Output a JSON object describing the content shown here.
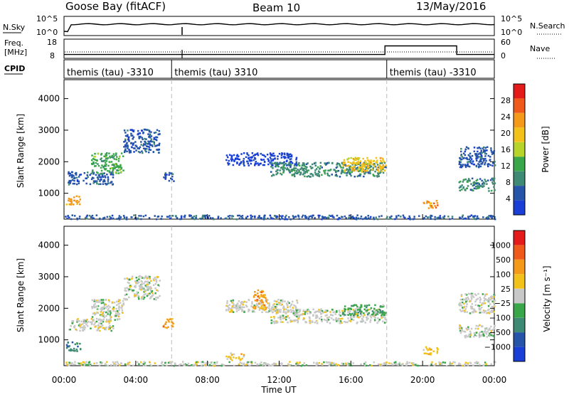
{
  "header": {
    "station": "Goose Bay (fitACF)",
    "beam": "Beam 10",
    "date": "13/May/2016"
  },
  "colors": {
    "power_scale": [
      "#1a3fd6",
      "#2554a8",
      "#3f8a74",
      "#3aa64a",
      "#b6d42a",
      "#f2c21b",
      "#f39a1a",
      "#ef5a1a",
      "#e51a1a"
    ],
    "velocity_scale": [
      "#1a3fd6",
      "#2554a8",
      "#3f8a74",
      "#3aa64a",
      "#c8c8c8",
      "#f2c21b",
      "#f39a1a",
      "#ef5a1a",
      "#e51a1a"
    ],
    "ground_scatter": "#c8c8c8"
  },
  "chart_data": [
    {
      "type": "line",
      "panel": "noise",
      "left_label": "N.Sky",
      "right_label": "N.Search",
      "left_ticks": [
        "10^5",
        "10^0"
      ],
      "right_ticks": [
        "10^5",
        "10^0"
      ]
    },
    {
      "type": "line",
      "panel": "frequency",
      "left_label_top": "Freq.",
      "left_label_bottom": "[MHz]",
      "right_label": "Nave",
      "left_ticks": [
        18,
        8
      ],
      "right_ticks": [
        60,
        0
      ],
      "freq_step": {
        "x": [
          0.0,
          17.9,
          17.9,
          21.9,
          21.9,
          24.0
        ],
        "y": [
          10,
          10,
          14.5,
          14.5,
          10,
          10
        ]
      }
    },
    {
      "type": "table",
      "panel": "cpid",
      "label": "CPID",
      "segments": [
        {
          "start": 0.0,
          "label": "themis (tau) -3310"
        },
        {
          "start": 6.0,
          "label": "themis (tau) 3310"
        },
        {
          "start": 18.0,
          "label": "themis (tau) -3310"
        }
      ]
    },
    {
      "type": "heatmap",
      "panel": "power",
      "ylabel": "Slant Range [km]",
      "yticks": [
        1000,
        2000,
        3000,
        4000
      ],
      "ylim": [
        180,
        4600
      ],
      "xlim": [
        0,
        24
      ],
      "colorbar_label": "Power [dB]",
      "colorbar_ticks": [
        4,
        8,
        12,
        16,
        20,
        24,
        28
      ],
      "regions": [
        {
          "x": [
            0.1,
            0.9
          ],
          "y": [
            650,
            950
          ],
          "level": 6
        },
        {
          "x": [
            0.2,
            2.7
          ],
          "y": [
            1300,
            1700
          ],
          "level": 1
        },
        {
          "x": [
            1.5,
            3.3
          ],
          "y": [
            1650,
            2300
          ],
          "level": 3
        },
        {
          "x": [
            3.3,
            5.3
          ],
          "y": [
            2300,
            3050
          ],
          "level": 1
        },
        {
          "x": [
            5.5,
            6.1
          ],
          "y": [
            1400,
            1700
          ],
          "level": 1
        },
        {
          "x": [
            9.0,
            13.0
          ],
          "y": [
            1900,
            2300
          ],
          "level": 0
        },
        {
          "x": [
            11.5,
            17.9
          ],
          "y": [
            1550,
            2000
          ],
          "level": 2
        },
        {
          "x": [
            15.5,
            17.9
          ],
          "y": [
            1700,
            2150
          ],
          "level": 5
        },
        {
          "x": [
            20.0,
            20.8
          ],
          "y": [
            550,
            800
          ],
          "level": 6
        },
        {
          "x": [
            22.0,
            24.0
          ],
          "y": [
            1100,
            1500
          ],
          "level": 2
        },
        {
          "x": [
            22.0,
            24.0
          ],
          "y": [
            1850,
            2500
          ],
          "level": 1
        },
        {
          "x": [
            0.0,
            24.0
          ],
          "y": [
            200,
            330
          ],
          "level": 1
        }
      ]
    },
    {
      "type": "heatmap",
      "panel": "velocity",
      "xlabel": "Time UT",
      "ylabel": "Slant Range [km]",
      "yticks": [
        1000,
        2000,
        3000,
        4000
      ],
      "ylim": [
        180,
        4600
      ],
      "xlim": [
        0,
        24
      ],
      "xticks": [
        "00:00",
        "04:00",
        "08:00",
        "12:00",
        "16:00",
        "20:00",
        "00:00"
      ],
      "colorbar_label": "Velocity [m s⁻¹]",
      "colorbar_ticks": [
        "1000",
        "500",
        "100",
        "25",
        "−25",
        "−100",
        "−500",
        "−1000"
      ],
      "regions": [
        {
          "x": [
            0.1,
            0.9
          ],
          "y": [
            650,
            950
          ],
          "level": 2
        },
        {
          "x": [
            0.2,
            2.7
          ],
          "y": [
            1300,
            1700
          ],
          "level": 4
        },
        {
          "x": [
            1.5,
            3.3
          ],
          "y": [
            1650,
            2300
          ],
          "level": 4
        },
        {
          "x": [
            3.3,
            5.3
          ],
          "y": [
            2300,
            3050
          ],
          "level": 4
        },
        {
          "x": [
            5.5,
            6.1
          ],
          "y": [
            1400,
            1700
          ],
          "level": 6
        },
        {
          "x": [
            9.0,
            13.0
          ],
          "y": [
            1900,
            2300
          ],
          "level": 4
        },
        {
          "x": [
            10.5,
            11.3
          ],
          "y": [
            2000,
            2600
          ],
          "level": 6
        },
        {
          "x": [
            11.5,
            17.9
          ],
          "y": [
            1550,
            2000
          ],
          "level": 4
        },
        {
          "x": [
            15.5,
            17.9
          ],
          "y": [
            1800,
            2150
          ],
          "level": 3
        },
        {
          "x": [
            9.0,
            10.0
          ],
          "y": [
            380,
            600
          ],
          "level": 5
        },
        {
          "x": [
            20.0,
            20.8
          ],
          "y": [
            550,
            800
          ],
          "level": 5
        },
        {
          "x": [
            22.0,
            24.0
          ],
          "y": [
            1100,
            1500
          ],
          "level": 4
        },
        {
          "x": [
            22.0,
            24.0
          ],
          "y": [
            1850,
            2500
          ],
          "level": 4
        },
        {
          "x": [
            0.0,
            24.0
          ],
          "y": [
            200,
            330
          ],
          "level": 4
        }
      ]
    }
  ]
}
